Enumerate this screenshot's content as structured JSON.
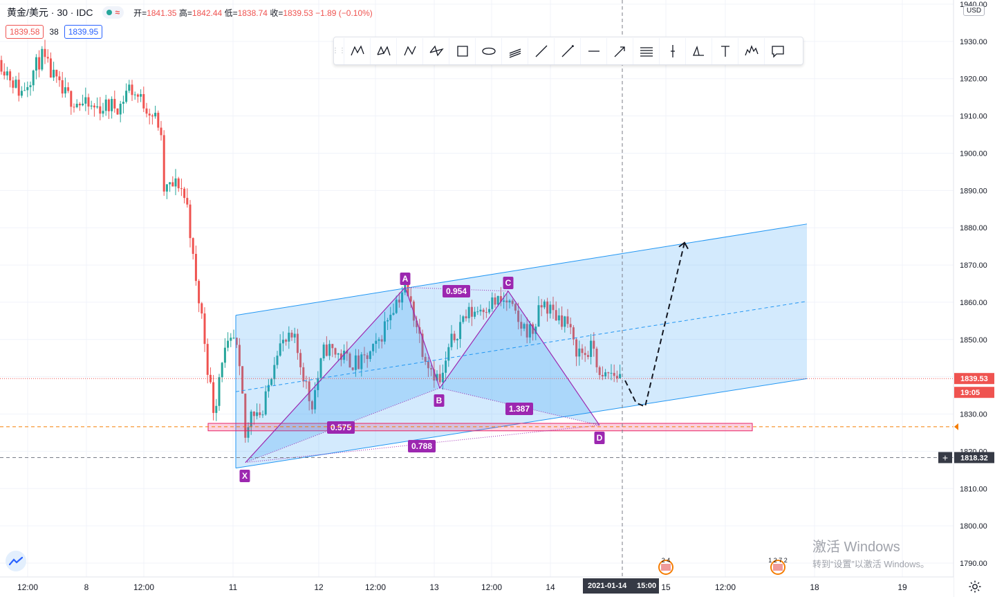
{
  "header": {
    "symbol": "黄金/美元 · 30 · IDC",
    "open_label": "开=",
    "open": "1841.35",
    "high_label": "高=",
    "high": "1842.44",
    "low_label": "低=",
    "low": "1838.74",
    "close_label": "收=",
    "close": "1839.53",
    "change": "−1.89 (−0.10%)"
  },
  "quote": {
    "bid": "1839.58",
    "spread": "38",
    "ask": "1839.95"
  },
  "currency": "USD",
  "toolbar": {
    "tools": [
      "xabcd-pattern-icon",
      "cypher-pattern-icon",
      "abcd-pattern-icon",
      "triangle-pattern-icon",
      "rectangle-icon",
      "ellipse-icon",
      "fib-channel-icon",
      "trend-line-icon",
      "ray-icon",
      "horizontal-line-icon",
      "arrow-icon",
      "parallel-channel-icon",
      "vertical-line-icon",
      "head-shoulders-icon",
      "text-icon",
      "elliott-wave-icon",
      "callout-icon"
    ]
  },
  "watermark": {
    "line1": "激活 Windows",
    "line2": "转到“设置”以激活 Windows。"
  },
  "colors": {
    "up": "#26a69a",
    "down": "#ef5350",
    "pattern": "#9c27b0",
    "channel": "#2196f3",
    "zone": "#e91e63"
  },
  "chart_data": {
    "type": "candlestick",
    "symbol": "XAUUSD",
    "interval": "30",
    "y_ticks": [
      1790,
      1800,
      1810,
      1820,
      1830,
      1840,
      1850,
      1860,
      1870,
      1880,
      1890,
      1900,
      1910,
      1920,
      1930,
      1940
    ],
    "y_tick_labels": [
      "1790.00",
      "1800.00",
      "1810.00",
      "1820.00",
      "1830.00",
      "1840.00",
      "1850.00",
      "1860.00",
      "1870.00",
      "1880.00",
      "1890.00",
      "1900.00",
      "1910.00",
      "1920.00",
      "1930.00",
      "1940.00"
    ],
    "x_ticks": [
      "12:00",
      "8",
      "12:00",
      "11",
      "12",
      "12:00",
      "13",
      "12:00",
      "14",
      "15",
      "12:00",
      "18",
      "19"
    ],
    "ylim": [
      1786,
      1941
    ],
    "last_price_label": "1839.53",
    "countdown": "19:05",
    "crosshair_price_label": "1818.32",
    "crosshair_time_label": "2021-01-14",
    "crosshair_time_label2": "15:00",
    "pattern_points": {
      "X": 1817,
      "A": 1864,
      "B": 1837,
      "C": 1863,
      "D": 1827
    },
    "pattern_labels": [
      "X",
      "A",
      "B",
      "C",
      "D"
    ],
    "ratios": [
      "0.954",
      "1.387",
      "0.575",
      "0.788"
    ],
    "zone": [
      1825.5,
      1827.5
    ],
    "channel": {
      "upper_start": 1856.5,
      "upper_end": 1881,
      "lower_start": 1815.5,
      "lower_end": 1839.5
    },
    "projection": [
      1839,
      1833,
      1832,
      1853,
      1876
    ],
    "event_labels": [
      "2 4",
      "1 2 7 2"
    ]
  }
}
